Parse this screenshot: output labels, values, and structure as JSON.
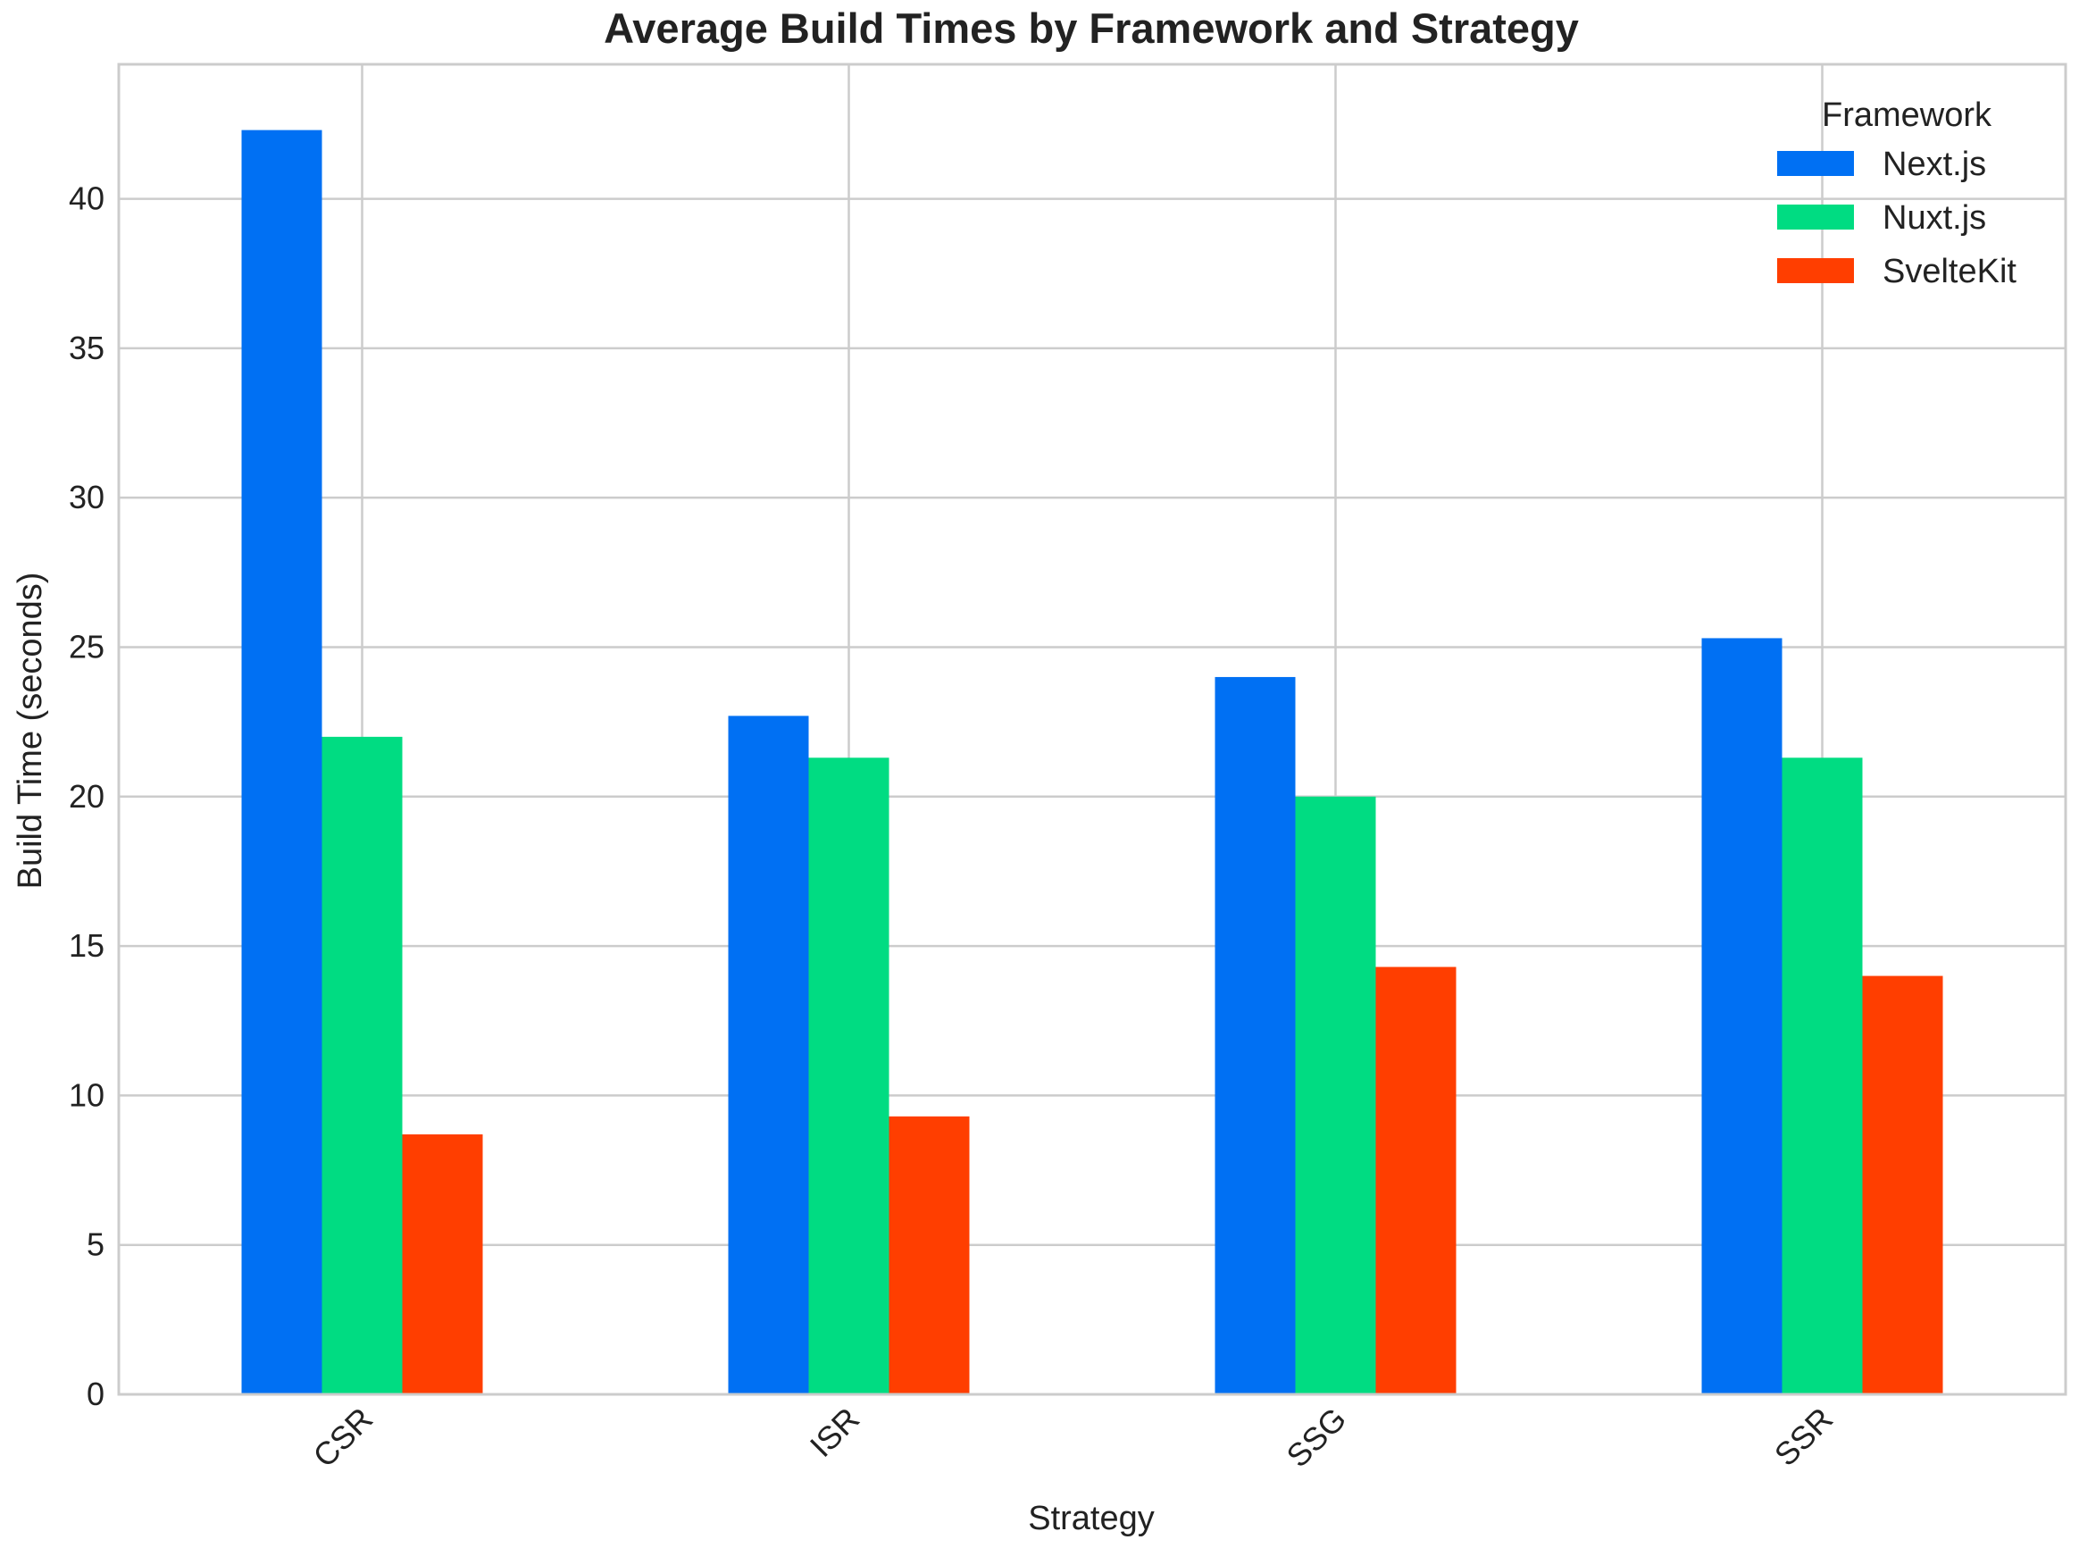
{
  "chart_data": {
    "type": "bar",
    "title": "Average Build Times by Framework and Strategy",
    "xlabel": "Strategy",
    "ylabel": "Build Time (seconds)",
    "categories": [
      "CSR",
      "ISR",
      "SSG",
      "SSR"
    ],
    "ylim": [
      0,
      44.5
    ],
    "yticks": [
      0,
      5,
      10,
      15,
      20,
      25,
      30,
      35,
      40
    ],
    "grid": true,
    "legend": {
      "title": "Framework",
      "position": "top-right"
    },
    "series": [
      {
        "name": "Next.js",
        "color": "#0070f3",
        "values": [
          42.3,
          22.7,
          24.0,
          25.3
        ]
      },
      {
        "name": "Nuxt.js",
        "color": "#00dc82",
        "values": [
          22.0,
          21.3,
          20.0,
          21.3
        ]
      },
      {
        "name": "SvelteKit",
        "color": "#ff3e00",
        "values": [
          8.7,
          9.3,
          14.3,
          14.0
        ]
      }
    ]
  }
}
